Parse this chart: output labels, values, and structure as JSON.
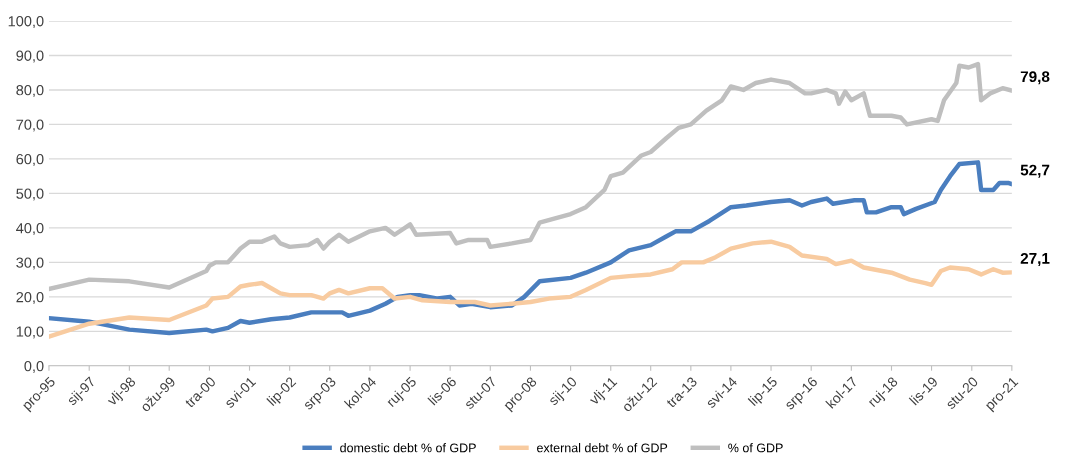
{
  "chart_data": {
    "type": "line",
    "x": [
      "1995-12",
      "1997-01",
      "1998-02",
      "1999-03",
      "2000-03",
      "2000-05",
      "2000-10",
      "2001-02",
      "2001-05",
      "2001-09",
      "2001-12",
      "2002-03",
      "2002-06",
      "2003-01",
      "2003-05",
      "2003-07",
      "2003-10",
      "2004-01",
      "2004-08",
      "2004-12",
      "2005-04",
      "2005-09",
      "2006-01",
      "2006-10",
      "2007-06",
      "2007-11",
      "2008-06",
      "2008-12",
      "2009-06",
      "2010-01",
      "2010-06",
      "2011-02",
      "2011-08",
      "2012-03",
      "2012-10",
      "2013-01",
      "2013-08",
      "2013-12",
      "2014-05",
      "2014-12",
      "2015-06",
      "2015-12",
      "2016-04",
      "2016-12",
      "2017-03",
      "2017-08",
      "2017-12",
      "2018-09",
      "2019-03",
      "2019-08",
      "2019-10",
      "2020-01",
      "2020-04",
      "2020-10",
      "2021-02",
      "2021-06",
      "2021-09",
      "2021-12"
    ],
    "series": [
      {
        "name": "domestic debt % of GDP",
        "color": "#4a7ebf",
        "x": [
          "1995-12",
          "1997-01",
          "1998-02",
          "1999-03",
          "2000-03",
          "2000-05",
          "2000-10",
          "2001-02",
          "2001-05",
          "2001-12",
          "2002-06",
          "2003-01",
          "2003-07",
          "2003-11",
          "2004-01",
          "2004-08",
          "2005-01",
          "2005-05",
          "2005-09",
          "2005-12",
          "2006-06",
          "2006-10",
          "2007-01",
          "2007-05",
          "2007-11",
          "2008-06",
          "2008-10",
          "2009-03",
          "2010-01",
          "2010-06",
          "2011-02",
          "2011-08",
          "2012-03",
          "2012-08",
          "2012-11",
          "2013-04",
          "2013-10",
          "2014-05",
          "2014-10",
          "2015-06",
          "2015-12",
          "2016-04",
          "2016-07",
          "2016-12",
          "2017-02",
          "2017-09",
          "2017-12",
          "2018-01",
          "2018-04",
          "2018-09",
          "2018-12",
          "2019-01",
          "2019-05",
          "2019-11",
          "2020-01",
          "2020-04",
          "2020-07",
          "2021-01",
          "2021-02",
          "2021-06",
          "2021-08",
          "2021-11",
          "2021-12"
        ],
        "values": [
          13.8,
          12.8,
          10.5,
          9.5,
          10.5,
          10,
          11,
          13,
          12.5,
          13.5,
          14,
          15.5,
          15.5,
          15.5,
          14.5,
          16,
          18,
          20,
          20.5,
          20.5,
          19.5,
          20,
          17.5,
          18,
          17,
          17.5,
          20,
          24.5,
          25.5,
          27,
          30,
          33.5,
          35,
          37.5,
          39,
          39,
          42,
          46,
          46.5,
          47.5,
          48,
          46.5,
          47.5,
          48.5,
          47,
          48,
          48,
          44.5,
          44.5,
          46,
          46,
          44,
          45.5,
          47.5,
          51,
          55,
          58.5,
          59,
          51,
          51,
          53,
          53,
          52.7
        ]
      },
      {
        "name": "external debt % of GDP",
        "color": "#f8cba0",
        "values": [
          8.5,
          12.2,
          14,
          13.3,
          17.5,
          19.5,
          20,
          23,
          23.5,
          24,
          22.5,
          21,
          20.5,
          20.5,
          19.5,
          21,
          22,
          21,
          22.5,
          22.5,
          19.5,
          20,
          19,
          18.5,
          18.5,
          17.5,
          18,
          18.5,
          19.5,
          20,
          22,
          25.5,
          26,
          26.5,
          28,
          30,
          30,
          31.5,
          34,
          35.5,
          36,
          34.5,
          32,
          31,
          29.5,
          30.5,
          28.5,
          27,
          25,
          24,
          23.5,
          27.5,
          28.5,
          28,
          26.5,
          28,
          27,
          27.1
        ]
      },
      {
        "name": "% of GDP",
        "color": "#bfbfbf",
        "x": [
          "1995-12",
          "1997-01",
          "1998-02",
          "1999-03",
          "2000-03",
          "2000-04",
          "2000-06",
          "2000-10",
          "2001-02",
          "2001-05",
          "2001-09",
          "2002-01",
          "2002-03",
          "2002-06",
          "2002-12",
          "2003-03",
          "2003-05",
          "2003-07",
          "2003-10",
          "2004-01",
          "2004-08",
          "2005-01",
          "2005-04",
          "2005-09",
          "2005-11",
          "2006-10",
          "2006-12",
          "2007-04",
          "2007-10",
          "2007-11",
          "2008-06",
          "2008-12",
          "2009-03",
          "2010-01",
          "2010-06",
          "2010-12",
          "2011-02",
          "2011-06",
          "2011-12",
          "2012-03",
          "2012-08",
          "2012-12",
          "2013-04",
          "2013-09",
          "2014-02",
          "2014-05",
          "2014-09",
          "2015-01",
          "2015-06",
          "2015-12",
          "2016-05",
          "2016-07",
          "2016-12",
          "2017-03",
          "2017-04",
          "2017-06",
          "2017-08",
          "2017-12",
          "2018-02",
          "2018-09",
          "2018-12",
          "2019-02",
          "2019-10",
          "2019-12",
          "2020-02",
          "2020-06",
          "2020-07",
          "2020-10",
          "2021-01",
          "2021-02",
          "2021-05",
          "2021-09",
          "2021-12"
        ],
        "values": [
          22.3,
          25,
          24.5,
          22.7,
          27.5,
          29,
          30,
          30,
          34,
          36,
          36,
          37.5,
          35.5,
          34.5,
          35,
          36.5,
          34,
          36,
          38,
          36,
          39,
          40,
          38,
          41,
          38,
          38.5,
          35.5,
          36.5,
          36.5,
          34.5,
          35.5,
          36.5,
          41.5,
          44,
          46,
          51,
          55,
          56,
          61,
          62,
          66,
          69,
          70,
          74,
          77,
          81,
          80,
          82,
          83,
          82,
          79,
          79,
          80,
          79,
          76,
          79.5,
          77,
          79,
          72.5,
          72.5,
          72,
          70,
          71.5,
          71,
          77,
          82,
          87,
          86.5,
          87.5,
          77,
          79,
          80.5,
          79.8
        ]
      }
    ],
    "annotations": [
      {
        "text": "79,8",
        "x": "2021-12",
        "y": 79.8
      },
      {
        "text": "52,7",
        "x": "2021-12",
        "y": 52.7
      },
      {
        "text": "27,1",
        "x": "2021-12",
        "y": 27.1
      }
    ],
    "xlim": [
      "1995-12",
      "2021-12"
    ],
    "xticks": [
      {
        "value": "1995-12",
        "label": "pro-95"
      },
      {
        "value": "1997-01",
        "label": "sij-97"
      },
      {
        "value": "1998-02",
        "label": "vlj-98"
      },
      {
        "value": "1999-03",
        "label": "ožu-99"
      },
      {
        "value": "2000-04",
        "label": "tra-00"
      },
      {
        "value": "2001-05",
        "label": "svi-01"
      },
      {
        "value": "2002-06",
        "label": "lip-02"
      },
      {
        "value": "2003-07",
        "label": "srp-03"
      },
      {
        "value": "2004-08",
        "label": "kol-04"
      },
      {
        "value": "2005-09",
        "label": "ruj-05"
      },
      {
        "value": "2006-10",
        "label": "lis-06"
      },
      {
        "value": "2007-11",
        "label": "stu-07"
      },
      {
        "value": "2008-12",
        "label": "pro-08"
      },
      {
        "value": "2010-01",
        "label": "sij-10"
      },
      {
        "value": "2011-02",
        "label": "vlj-11"
      },
      {
        "value": "2012-03",
        "label": "ožu-12"
      },
      {
        "value": "2013-04",
        "label": "tra-13"
      },
      {
        "value": "2014-05",
        "label": "svi-14"
      },
      {
        "value": "2015-06",
        "label": "lip-15"
      },
      {
        "value": "2016-07",
        "label": "srp-16"
      },
      {
        "value": "2017-08",
        "label": "kol-17"
      },
      {
        "value": "2018-09",
        "label": "ruj-18"
      },
      {
        "value": "2019-10",
        "label": "lis-19"
      },
      {
        "value": "2020-11",
        "label": "stu-20"
      },
      {
        "value": "2021-12",
        "label": "pro-21"
      }
    ],
    "ylim": [
      0,
      100
    ],
    "yticks": [
      {
        "value": 0,
        "label": "0,0"
      },
      {
        "value": 10,
        "label": "10,0"
      },
      {
        "value": 20,
        "label": "20,0"
      },
      {
        "value": 30,
        "label": "30,0"
      },
      {
        "value": 40,
        "label": "40,0"
      },
      {
        "value": 50,
        "label": "50,0"
      },
      {
        "value": 60,
        "label": "60,0"
      },
      {
        "value": 70,
        "label": "70,0"
      },
      {
        "value": 80,
        "label": "80,0"
      },
      {
        "value": 90,
        "label": "90,0"
      },
      {
        "value": 100,
        "label": "100,0"
      }
    ],
    "grid": "y",
    "legend": "bottom",
    "marker": "none",
    "line_style": "solid"
  }
}
